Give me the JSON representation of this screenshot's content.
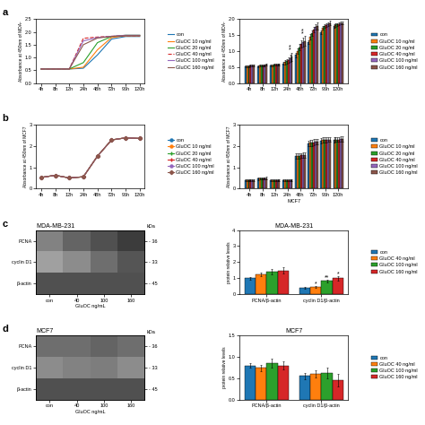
{
  "chart_data": [
    {
      "type": "line",
      "panel_label": "a",
      "categories": [
        "4h",
        "8h",
        "12h",
        "24h",
        "48h",
        "72h",
        "96h",
        "120h"
      ],
      "ylabel": "Absorbance at 450nm of MDA-",
      "ylim": [
        0,
        2.5
      ],
      "yticks": [
        {
          "value": 0,
          "label": "0.0"
        },
        0.5,
        {
          "value": 1,
          "label": "1.0"
        },
        1.5,
        {
          "value": 2,
          "label": "2.0"
        },
        2.5
      ],
      "legend": "center left",
      "series": [
        {
          "name": "con",
          "line_style": "solid",
          "values": [
            0.55,
            0.55,
            0.55,
            0.58,
            1.1,
            1.72,
            1.82,
            1.82
          ]
        },
        {
          "name": "GluOC 10 ng/ml",
          "line_style": "solid",
          "values": [
            0.55,
            0.55,
            0.55,
            0.62,
            1.3,
            1.78,
            1.85,
            1.85
          ]
        },
        {
          "name": "GluOC 20 ng/ml",
          "line_style": "solid",
          "values": [
            0.55,
            0.55,
            0.55,
            0.8,
            1.58,
            1.82,
            1.87,
            1.87
          ]
        },
        {
          "name": "GluOC 40 ng/ml",
          "line_style": "dashed",
          "values": [
            0.55,
            0.55,
            0.55,
            1.75,
            1.8,
            1.83,
            1.85,
            1.85
          ]
        },
        {
          "name": "GluOC 100 ng/ml",
          "line_style": "solid",
          "values": [
            0.55,
            0.55,
            0.55,
            1.65,
            1.78,
            1.83,
            1.87,
            1.87
          ]
        },
        {
          "name": "GluOC 160 ng/ml",
          "line_style": "solid",
          "values": [
            0.55,
            0.55,
            0.55,
            1.5,
            1.76,
            1.82,
            1.85,
            1.85
          ]
        }
      ]
    },
    {
      "type": "bar",
      "categories": [
        "4h",
        "8h",
        "12h",
        "24h",
        "48h",
        "72h",
        "96h",
        "120h"
      ],
      "ylabel": "Absorbance at 450nm of MDA-",
      "ylim": [
        0,
        2
      ],
      "yticks": [
        {
          "value": 0,
          "label": "0.0"
        },
        0.5,
        {
          "value": 1,
          "label": "1.0"
        },
        1.5,
        {
          "value": 2,
          "label": "2.0"
        }
      ],
      "legend": "center left",
      "series": [
        {
          "name": "con",
          "values": [
            0.52,
            0.52,
            0.55,
            0.62,
            0.88,
            1.28,
            1.58,
            1.78
          ],
          "errors": [
            0.03,
            0.03,
            0.03,
            0.05,
            0.07,
            0.07,
            0.06,
            0.05
          ]
        },
        {
          "name": "GluOC 10 ng/ml",
          "values": [
            0.53,
            0.54,
            0.56,
            0.65,
            1.0,
            1.45,
            1.72,
            1.82
          ],
          "errors": [
            0.03,
            0.03,
            0.03,
            0.06,
            0.08,
            0.08,
            0.06,
            0.05
          ]
        },
        {
          "name": "GluOC 20 ng/ml",
          "values": [
            0.53,
            0.55,
            0.57,
            0.68,
            1.12,
            1.56,
            1.78,
            1.83
          ],
          "errors": [
            0.03,
            0.03,
            0.03,
            0.07,
            0.09,
            0.08,
            0.06,
            0.05
          ]
        },
        {
          "name": "GluOC 40 ng/ml",
          "values": [
            0.54,
            0.56,
            0.58,
            0.72,
            1.22,
            1.68,
            1.82,
            1.85
          ],
          "errors": [
            0.03,
            0.03,
            0.03,
            0.09,
            0.11,
            0.09,
            0.06,
            0.05
          ]
        },
        {
          "name": "GluOC 100 ng/ml",
          "values": [
            0.54,
            0.56,
            0.58,
            0.78,
            1.28,
            1.75,
            1.85,
            1.88
          ],
          "errors": [
            0.03,
            0.03,
            0.03,
            0.11,
            0.13,
            0.09,
            0.06,
            0.05
          ]
        },
        {
          "name": "GluOC 160 ng/ml",
          "values": [
            0.54,
            0.57,
            0.59,
            0.82,
            1.32,
            1.78,
            1.87,
            1.88
          ],
          "errors": [
            0.03,
            0.03,
            0.03,
            0.13,
            0.15,
            0.11,
            0.07,
            0.05
          ]
        }
      ],
      "annotations": [
        {
          "text": "*",
          "category": "24h",
          "series": "GluOC 100 ng/ml",
          "y": 0.99
        },
        {
          "text": "*",
          "category": "24h",
          "series": "GluOC 100 ng/ml",
          "y": 1.07
        },
        {
          "text": "*",
          "category": "48h",
          "series": "GluOC 100 ng/ml",
          "y": 1.5
        },
        {
          "text": "*",
          "category": "48h",
          "series": "GluOC 100 ng/ml",
          "y": 1.58
        }
      ]
    },
    {
      "type": "line",
      "panel_label": "b",
      "categories": [
        "4h",
        "8h",
        "12h",
        "24h",
        "48h",
        "72h",
        "96h",
        "120h"
      ],
      "ylabel": "Absorbance at 450nm of MCF7",
      "ylim": [
        0,
        3
      ],
      "yticks": [
        0,
        1,
        2,
        3
      ],
      "legend": "center left",
      "series": [
        {
          "name": "con",
          "marker": "circle",
          "values": [
            0.52,
            0.62,
            0.5,
            0.55,
            1.52,
            2.28,
            2.38,
            2.35
          ]
        },
        {
          "name": "GluOC 10 ng/ml",
          "marker": "circle",
          "values": [
            0.52,
            0.62,
            0.5,
            0.55,
            1.52,
            2.28,
            2.38,
            2.35
          ]
        },
        {
          "name": "GluOC 20 ng/ml",
          "marker": "plus",
          "values": [
            0.52,
            0.62,
            0.5,
            0.55,
            1.52,
            2.28,
            2.38,
            2.35
          ]
        },
        {
          "name": "GluOC 40 ng/ml",
          "marker": "plus",
          "values": [
            0.52,
            0.62,
            0.5,
            0.55,
            1.52,
            2.28,
            2.38,
            2.35
          ]
        },
        {
          "name": "GluOC 100 ng/ml",
          "marker": "circle",
          "values": [
            0.52,
            0.62,
            0.5,
            0.55,
            1.52,
            2.28,
            2.38,
            2.35
          ]
        },
        {
          "name": "GluOC 160 ng/ml",
          "marker": "diamond",
          "values": [
            0.52,
            0.62,
            0.5,
            0.55,
            1.52,
            2.28,
            2.38,
            2.35
          ]
        }
      ]
    },
    {
      "type": "bar",
      "categories": [
        "4h",
        "8h",
        "12h",
        "24h",
        "48h",
        "72h",
        "96h",
        "120h"
      ],
      "xlabel": "MCF7",
      "ylabel": "Absorbance at 450nm of MCF7",
      "ylim": [
        0,
        3
      ],
      "yticks": [
        0,
        1,
        2,
        3
      ],
      "legend": "center left",
      "series": [
        {
          "name": "con",
          "values": [
            0.38,
            0.46,
            0.38,
            0.38,
            1.52,
            2.12,
            2.25,
            2.28
          ],
          "errors": [
            0.04,
            0.05,
            0.04,
            0.04,
            0.12,
            0.14,
            0.12,
            0.12
          ]
        },
        {
          "name": "GluOC 10 ng/ml",
          "values": [
            0.39,
            0.47,
            0.39,
            0.39,
            1.54,
            2.15,
            2.27,
            2.3
          ],
          "errors": [
            0.04,
            0.05,
            0.04,
            0.04,
            0.12,
            0.14,
            0.12,
            0.12
          ]
        },
        {
          "name": "GluOC 20 ng/ml",
          "values": [
            0.39,
            0.47,
            0.39,
            0.39,
            1.54,
            2.15,
            2.27,
            2.3
          ],
          "errors": [
            0.04,
            0.05,
            0.04,
            0.04,
            0.12,
            0.14,
            0.12,
            0.12
          ]
        },
        {
          "name": "GluOC 40 ng/ml",
          "values": [
            0.39,
            0.48,
            0.39,
            0.4,
            1.55,
            2.17,
            2.28,
            2.3
          ],
          "errors": [
            0.04,
            0.05,
            0.04,
            0.04,
            0.12,
            0.14,
            0.12,
            0.12
          ]
        },
        {
          "name": "GluOC 100 ng/ml",
          "values": [
            0.4,
            0.48,
            0.4,
            0.4,
            1.57,
            2.2,
            2.3,
            2.32
          ],
          "errors": [
            0.04,
            0.05,
            0.04,
            0.04,
            0.12,
            0.14,
            0.12,
            0.12
          ]
        },
        {
          "name": "GluOC 160 ng/ml",
          "values": [
            0.4,
            0.49,
            0.4,
            0.4,
            1.57,
            2.2,
            2.3,
            2.32
          ],
          "errors": [
            0.04,
            0.05,
            0.04,
            0.04,
            0.12,
            0.14,
            0.12,
            0.12
          ]
        }
      ]
    },
    {
      "type": "heatmap",
      "panel_label": "c",
      "title": "MDA-MB-231",
      "categories": [
        "con",
        "40",
        "100",
        "160"
      ],
      "rows": [
        "PCNA",
        "cyclin D1",
        "β-actin"
      ],
      "cells": [
        [
          130,
          100,
          80,
          60
        ],
        [
          160,
          140,
          110,
          85
        ],
        [
          80,
          80,
          80,
          80
        ]
      ],
      "color_range": [
        0,
        255
      ],
      "row_notes": [
        "- 36",
        "- 33",
        "- 45"
      ],
      "row_notes_title": "kDa",
      "xlabel": "GluOC ng/mL"
    },
    {
      "type": "bar",
      "title": "MDA-MB-231",
      "categories": [
        "PCNA/β-actin",
        "cyclin D1/β-actin"
      ],
      "ylabel": "protein relative levels",
      "ylim": [
        0,
        4
      ],
      "yticks": [
        0,
        1,
        2,
        3,
        4
      ],
      "legend": "center left",
      "series": [
        {
          "name": "con",
          "values": [
            1.0,
            0.38
          ],
          "errors": [
            0.08,
            0.05
          ]
        },
        {
          "name": "GluOC 40 ng/ml",
          "values": [
            1.22,
            0.45
          ],
          "errors": [
            0.12,
            0.06
          ]
        },
        {
          "name": "GluOC 100 ng/ml",
          "values": [
            1.4,
            0.82
          ],
          "errors": [
            0.15,
            0.1
          ]
        },
        {
          "name": "GluOC 160 ng/ml",
          "values": [
            1.48,
            0.98
          ],
          "errors": [
            0.18,
            0.14
          ]
        }
      ],
      "annotations": [
        {
          "text": "*",
          "category": "cyclin D1/β-actin",
          "series": "GluOC 160 ng/ml",
          "y": 1.15
        },
        {
          "text": "*",
          "category": "cyclin D1/β-actin",
          "series": "GluOC 40 ng/ml",
          "y": 0.55
        },
        {
          "text": "**",
          "category": "cyclin D1/β-actin",
          "series": "GluOC 100 ng/ml",
          "y": 0.94
        }
      ]
    },
    {
      "type": "heatmap",
      "panel_label": "d",
      "title": "MCF7",
      "categories": [
        "con",
        "40",
        "100",
        "160"
      ],
      "rows": [
        "PCNA",
        "cyclin D1",
        "β-actin"
      ],
      "cells": [
        [
          110,
          110,
          100,
          110
        ],
        [
          140,
          130,
          125,
          140
        ],
        [
          80,
          80,
          80,
          80
        ]
      ],
      "color_range": [
        0,
        255
      ],
      "row_notes": [
        "- 36",
        "- 33",
        "- 45"
      ],
      "row_notes_title": "kDa",
      "xlabel": "GluOC ng/mL"
    },
    {
      "type": "bar",
      "title": "MCF7",
      "categories": [
        "PCNA/β-actin",
        "cyclin D1/β-actin"
      ],
      "ylabel": "protein relative levels",
      "ylim": [
        0,
        1.5
      ],
      "yticks": [
        {
          "value": 0,
          "label": "0.0"
        },
        0.5,
        {
          "value": 1,
          "label": "1.0"
        },
        1.5
      ],
      "legend": "center left",
      "series": [
        {
          "name": "con",
          "values": [
            0.8,
            0.55
          ],
          "errors": [
            0.06,
            0.08
          ]
        },
        {
          "name": "GluOC 40 ng/ml",
          "values": [
            0.74,
            0.6
          ],
          "errors": [
            0.08,
            0.09
          ]
        },
        {
          "name": "GluOC 100 ng/ml",
          "values": [
            0.85,
            0.62
          ],
          "errors": [
            0.1,
            0.12
          ]
        },
        {
          "name": "GluOC 160 ng/ml",
          "values": [
            0.8,
            0.45
          ],
          "errors": [
            0.1,
            0.15
          ]
        }
      ]
    }
  ]
}
